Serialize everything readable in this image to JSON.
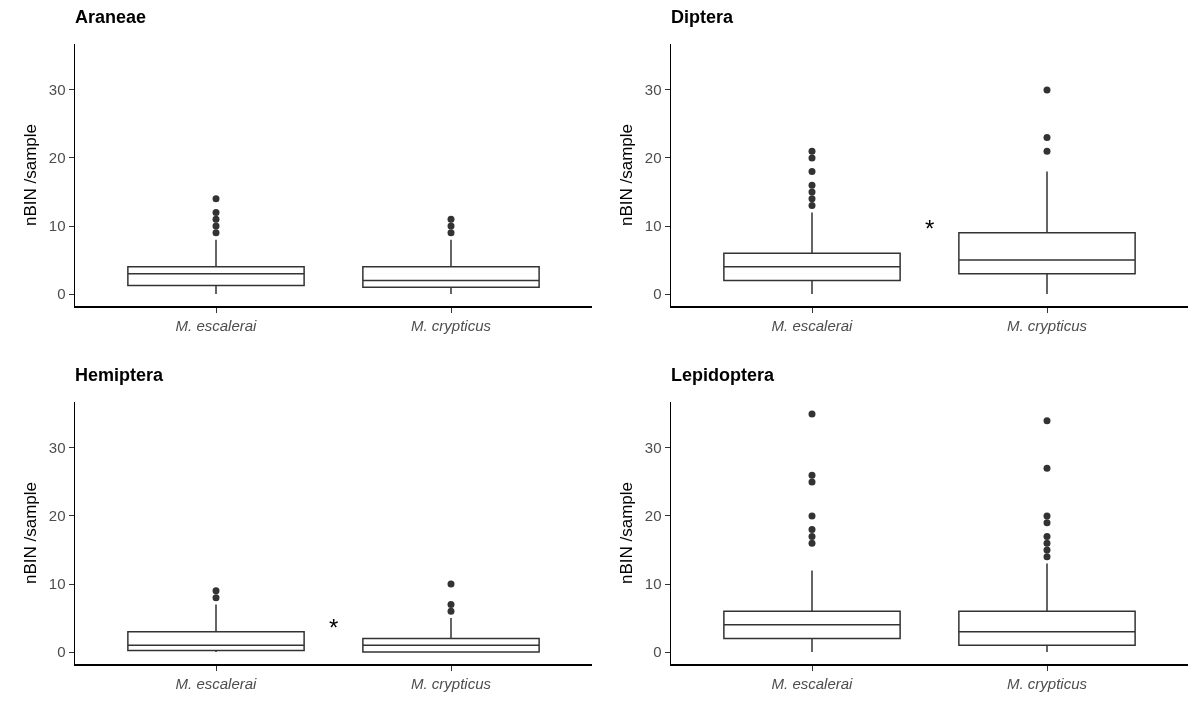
{
  "chart_data": [
    {
      "type": "box",
      "title": "Araneae",
      "ylabel": "nBIN /sample",
      "categories": [
        "M. escalerai",
        "M. crypticus"
      ],
      "ylim": [
        -1.75,
        36.75
      ],
      "yticks": [
        0,
        10,
        20,
        30
      ],
      "grid": false,
      "series": [
        {
          "color": "#333333",
          "boxes": [
            {
              "low": 0,
              "q1": 1.25,
              "median": 3,
              "q3": 4,
              "high": 8,
              "outliers": [
                9,
                10,
                11,
                12,
                14
              ]
            },
            {
              "low": 0,
              "q1": 1,
              "median": 2,
              "q3": 4,
              "high": 8,
              "outliers": [
                9,
                10,
                11
              ]
            }
          ]
        }
      ]
    },
    {
      "type": "box",
      "title": "Diptera",
      "ylabel": "nBIN /sample",
      "categories": [
        "M. escalerai",
        "M. crypticus"
      ],
      "ylim": [
        -1.75,
        36.75
      ],
      "yticks": [
        0,
        10,
        20,
        30
      ],
      "grid": false,
      "annotations": [
        "*"
      ],
      "series": [
        {
          "color": "#333333",
          "boxes": [
            {
              "low": 0,
              "q1": 2,
              "median": 4,
              "q3": 6,
              "high": 12,
              "outliers": [
                13,
                14,
                15,
                16,
                18,
                20,
                21
              ]
            },
            {
              "low": 0,
              "q1": 3,
              "median": 5,
              "q3": 9,
              "high": 18,
              "outliers": [
                21,
                23,
                30
              ]
            }
          ]
        }
      ]
    },
    {
      "type": "box",
      "title": "Hemiptera",
      "ylabel": "nBIN /sample",
      "categories": [
        "M. escalerai",
        "M. crypticus"
      ],
      "ylim": [
        -1.75,
        36.75
      ],
      "yticks": [
        0,
        10,
        20,
        30
      ],
      "grid": false,
      "annotations": [
        "*"
      ],
      "series": [
        {
          "color": "#333333",
          "boxes": [
            {
              "low": 0,
              "q1": 0.25,
              "median": 1,
              "q3": 3,
              "high": 7,
              "outliers": [
                8,
                9
              ]
            },
            {
              "low": 0,
              "q1": 0,
              "median": 1,
              "q3": 2,
              "high": 5,
              "outliers": [
                6,
                7,
                10
              ]
            }
          ]
        }
      ]
    },
    {
      "type": "box",
      "title": "Lepidoptera",
      "ylabel": "nBIN /sample",
      "categories": [
        "M. escalerai",
        "M. crypticus"
      ],
      "ylim": [
        -1.75,
        36.75
      ],
      "yticks": [
        0,
        10,
        20,
        30
      ],
      "grid": false,
      "series": [
        {
          "color": "#333333",
          "boxes": [
            {
              "low": 0,
              "q1": 2,
              "median": 4,
              "q3": 6,
              "high": 12,
              "outliers": [
                16,
                17,
                18,
                20,
                25,
                26,
                35
              ]
            },
            {
              "low": 0,
              "q1": 1,
              "median": 3,
              "q3": 6,
              "high": 13,
              "outliers": [
                14,
                15,
                16,
                17,
                19,
                20,
                27,
                34
              ]
            }
          ]
        }
      ]
    }
  ]
}
